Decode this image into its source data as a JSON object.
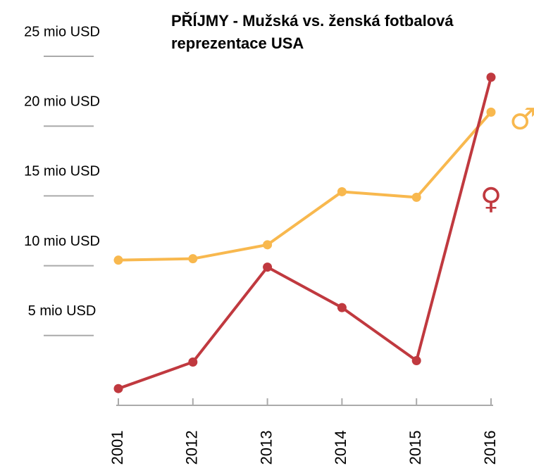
{
  "chart_data": {
    "type": "line",
    "title": "PŘÍJMY - Mužská vs. ženská fotbalová reprezentace USA",
    "categories": [
      "2001",
      "2012",
      "2013",
      "2014",
      "2015",
      "2016"
    ],
    "series": [
      {
        "name": "♂",
        "color": "#f8b84e",
        "values": [
          10.4,
          10.5,
          11.5,
          15.3,
          14.9,
          21.0
        ]
      },
      {
        "name": "♀",
        "color": "#c0393f",
        "values": [
          1.2,
          3.1,
          9.9,
          7.0,
          3.2,
          23.5
        ]
      }
    ],
    "ylim": [
      0,
      25
    ],
    "yticks": [
      {
        "value": 5,
        "label": "5 mio USD"
      },
      {
        "value": 10,
        "label": "10 mio USD"
      },
      {
        "value": 15,
        "label": "15 mio USD"
      },
      {
        "value": 20,
        "label": "20 mio USD"
      },
      {
        "value": 25,
        "label": "25 mio USD"
      }
    ],
    "grid": true
  }
}
